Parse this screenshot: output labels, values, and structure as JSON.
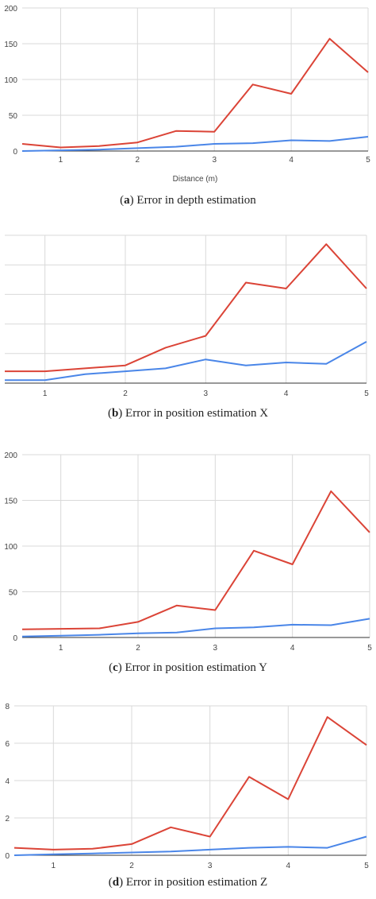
{
  "chart_data": [
    {
      "type": "line",
      "panel": "a",
      "caption_letter": "a",
      "caption_text": "Error in depth estimation",
      "xlabel": "Distance (m)",
      "ylabel": "",
      "x": [
        0.5,
        1,
        1.5,
        2,
        2.5,
        3,
        3.5,
        4,
        4.5,
        5
      ],
      "xlim": [
        0.5,
        5
      ],
      "ylim": [
        0,
        200
      ],
      "xticks": [
        "1",
        "2",
        "3",
        "4",
        "5"
      ],
      "yticks": [
        "0",
        "50",
        "100",
        "150",
        "200"
      ],
      "grid": true,
      "series": [
        {
          "color": "#db4437",
          "values": [
            10,
            5,
            7,
            12,
            28,
            27,
            93,
            80,
            157,
            110
          ]
        },
        {
          "color": "#4a86e8",
          "values": [
            0,
            1,
            2,
            4,
            6,
            10,
            11,
            15,
            14,
            20
          ]
        }
      ]
    },
    {
      "type": "line",
      "panel": "b",
      "caption_letter": "b",
      "caption_text": "Error in position estimation X",
      "xlabel": "",
      "ylabel": "",
      "x": [
        0.5,
        1,
        1.5,
        2,
        2.5,
        3,
        3.5,
        4,
        4.5,
        5
      ],
      "xlim": [
        0.5,
        5
      ],
      "ylim": [
        0,
        5
      ],
      "xticks": [
        "1",
        "2",
        "3",
        "4",
        "5"
      ],
      "yticks": [],
      "grid": true,
      "series": [
        {
          "color": "#db4437",
          "values": [
            0.4,
            0.4,
            0.5,
            0.6,
            1.2,
            1.6,
            3.4,
            3.2,
            4.7,
            3.2
          ]
        },
        {
          "color": "#4a86e8",
          "values": [
            0.1,
            0.1,
            0.3,
            0.4,
            0.5,
            0.8,
            0.6,
            0.7,
            0.65,
            1.4
          ]
        }
      ]
    },
    {
      "type": "line",
      "panel": "c",
      "caption_letter": "c",
      "caption_text": "Error in position estimation Y",
      "xlabel": "",
      "ylabel": "",
      "x": [
        0.5,
        1,
        1.5,
        2,
        2.5,
        3,
        3.5,
        4,
        4.5,
        5
      ],
      "xlim": [
        0.5,
        5
      ],
      "ylim": [
        0,
        200
      ],
      "xticks": [
        "1",
        "2",
        "3",
        "4",
        "5"
      ],
      "yticks": [
        "0",
        "50",
        "100",
        "150",
        "200"
      ],
      "grid": true,
      "series": [
        {
          "color": "#db4437",
          "values": [
            9,
            9.5,
            10,
            17,
            35,
            30,
            95,
            80,
            160,
            115
          ]
        },
        {
          "color": "#4a86e8",
          "values": [
            1,
            2,
            3,
            4.5,
            5.5,
            10,
            11,
            14,
            13.5,
            20.5
          ]
        }
      ]
    },
    {
      "type": "line",
      "panel": "d",
      "caption_letter": "d",
      "caption_text": "Error in position estimation Z",
      "xlabel": "",
      "ylabel": "",
      "x": [
        0.5,
        1,
        1.5,
        2,
        2.5,
        3,
        3.5,
        4,
        4.5,
        5
      ],
      "xlim": [
        0.5,
        5
      ],
      "ylim": [
        0,
        8
      ],
      "xticks": [
        "1",
        "2",
        "3",
        "4",
        "5"
      ],
      "yticks": [
        "0",
        "2",
        "4",
        "6",
        "8"
      ],
      "grid": true,
      "series": [
        {
          "color": "#db4437",
          "values": [
            0.4,
            0.3,
            0.35,
            0.6,
            1.5,
            1.0,
            4.2,
            3.0,
            7.4,
            5.9
          ]
        },
        {
          "color": "#4a86e8",
          "values": [
            0,
            0.05,
            0.1,
            0.15,
            0.2,
            0.3,
            0.4,
            0.45,
            0.4,
            1.0
          ]
        }
      ]
    }
  ]
}
